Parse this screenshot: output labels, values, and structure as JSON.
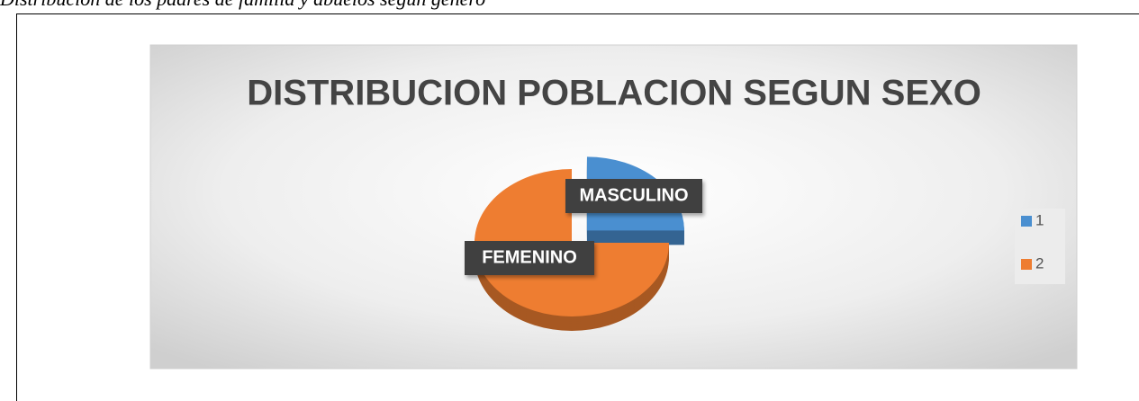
{
  "caption": "Distribución de los padres de familia y abuelos según género",
  "chart_data": {
    "type": "pie",
    "title": "DISTRIBUCION POBLACION SEGUN SEXO",
    "categories": [
      "1",
      "2"
    ],
    "values": [
      25,
      75
    ],
    "value_labels": [
      "MASCULINO",
      "FEMENINO"
    ],
    "colors": [
      "#4a8fd0",
      "#ee7d31"
    ],
    "legend": "right"
  }
}
